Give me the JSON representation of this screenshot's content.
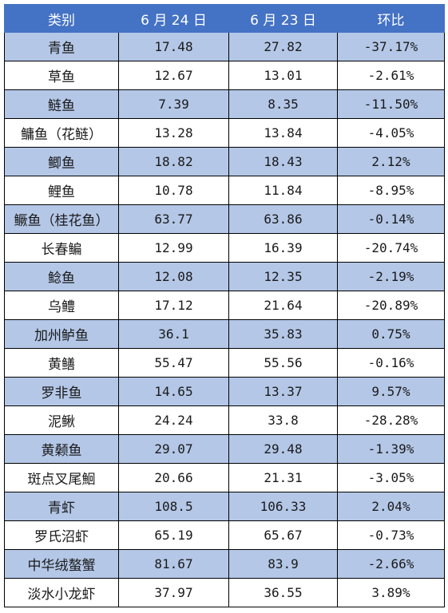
{
  "table": {
    "headers": [
      "类别",
      "6 月 24 日",
      "6 月 23 日",
      "环比"
    ],
    "rows": [
      [
        "青鱼",
        "17.48",
        "27.82",
        "-37.17%"
      ],
      [
        "草鱼",
        "12.67",
        "13.01",
        "-2.61%"
      ],
      [
        "鲢鱼",
        "7.39",
        "8.35",
        "-11.50%"
      ],
      [
        "鳙鱼（花鲢）",
        "13.28",
        "13.84",
        "-4.05%"
      ],
      [
        "鲫鱼",
        "18.82",
        "18.43",
        "2.12%"
      ],
      [
        "鲤鱼",
        "10.78",
        "11.84",
        "-8.95%"
      ],
      [
        "鳜鱼（桂花鱼）",
        "63.77",
        "63.86",
        "-0.14%"
      ],
      [
        "长春鳊",
        "12.99",
        "16.39",
        "-20.74%"
      ],
      [
        "鲶鱼",
        "12.08",
        "12.35",
        "-2.19%"
      ],
      [
        "乌鳢",
        "17.12",
        "21.64",
        "-20.89%"
      ],
      [
        "加州鲈鱼",
        "36.1",
        "35.83",
        "0.75%"
      ],
      [
        "黄鳝",
        "55.47",
        "55.56",
        "-0.16%"
      ],
      [
        "罗非鱼",
        "14.65",
        "13.37",
        "9.57%"
      ],
      [
        "泥鳅",
        "24.24",
        "33.8",
        "-28.28%"
      ],
      [
        "黄颡鱼",
        "29.07",
        "29.48",
        "-1.39%"
      ],
      [
        "斑点叉尾鮰",
        "20.66",
        "21.31",
        "-3.05%"
      ],
      [
        "青虾",
        "108.5",
        "106.33",
        "2.04%"
      ],
      [
        "罗氏沼虾",
        "65.19",
        "65.67",
        "-0.73%"
      ],
      [
        "中华绒螯蟹",
        "81.67",
        "83.9",
        "-2.66%"
      ],
      [
        "淡水小龙虾",
        "37.97",
        "36.55",
        "3.89%"
      ]
    ]
  },
  "colors": {
    "header_bg": "#4472c4",
    "header_text": "#ffffff",
    "stripe_bg": "#b4c7e7",
    "plain_bg": "#ffffff"
  }
}
